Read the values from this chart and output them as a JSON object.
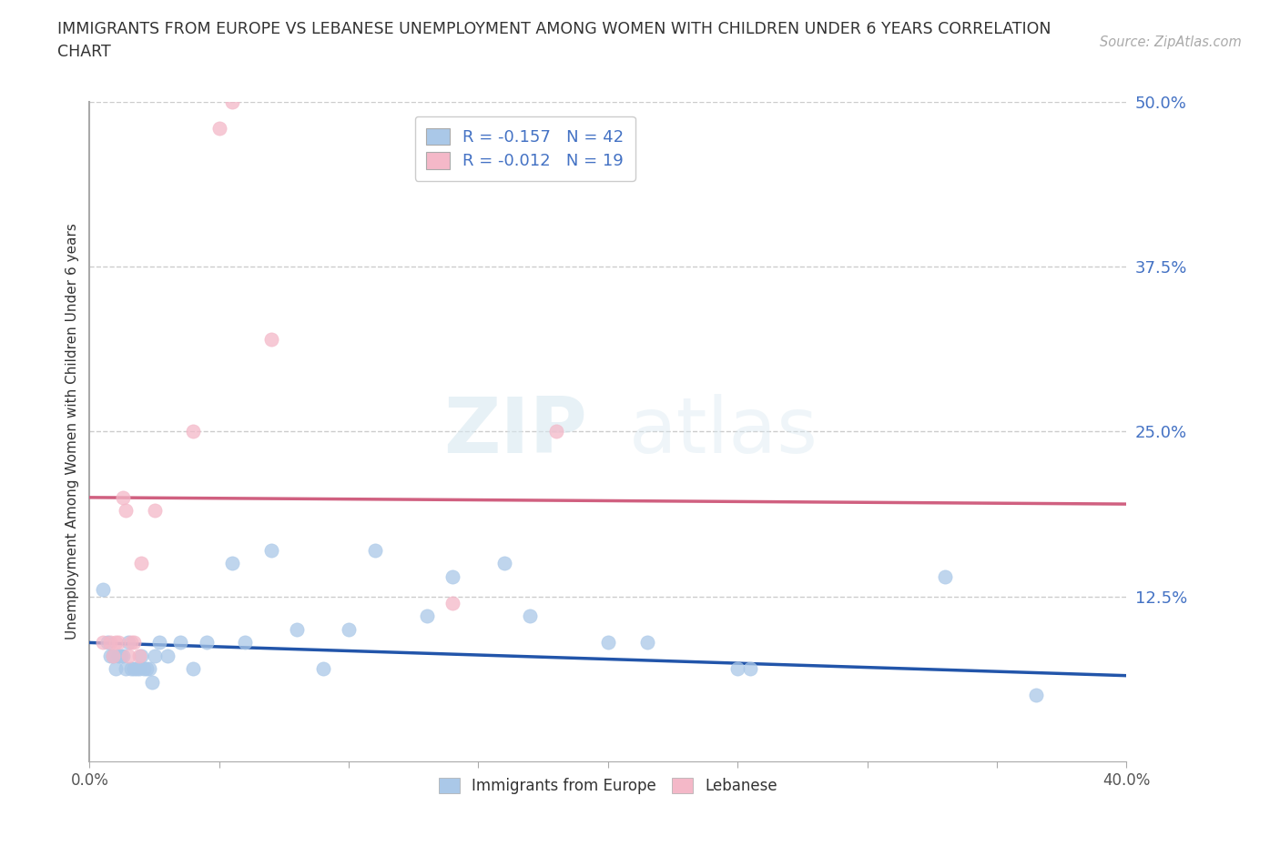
{
  "title": "IMMIGRANTS FROM EUROPE VS LEBANESE UNEMPLOYMENT AMONG WOMEN WITH CHILDREN UNDER 6 YEARS CORRELATION\nCHART",
  "source": "Source: ZipAtlas.com",
  "ylabel": "Unemployment Among Women with Children Under 6 years",
  "xlim": [
    0.0,
    0.4
  ],
  "ylim": [
    0.0,
    0.5
  ],
  "yticks": [
    0.125,
    0.25,
    0.375,
    0.5
  ],
  "ytick_labels": [
    "12.5%",
    "25.0%",
    "37.5%",
    "50.0%"
  ],
  "xticks": [
    0.0,
    0.05,
    0.1,
    0.15,
    0.2,
    0.25,
    0.3,
    0.35,
    0.4
  ],
  "xtick_labels": [
    "0.0%",
    "",
    "",
    "",
    "",
    "",
    "",
    "",
    "40.0%"
  ],
  "grid_color": "#cccccc",
  "background_color": "#ffffff",
  "blue_color": "#aac8e8",
  "pink_color": "#f4b8c8",
  "blue_line_color": "#2255aa",
  "pink_line_color": "#d06080",
  "legend1_text": "R = -0.157   N = 42",
  "legend2_text": "R = -0.012   N = 19",
  "legend_label1": "Immigrants from Europe",
  "legend_label2": "Lebanese",
  "watermark_zip": "ZIP",
  "watermark_atlas": "atlas",
  "blue_scatter_x": [
    0.005,
    0.007,
    0.008,
    0.009,
    0.01,
    0.011,
    0.012,
    0.013,
    0.014,
    0.015,
    0.016,
    0.017,
    0.018,
    0.019,
    0.02,
    0.021,
    0.022,
    0.023,
    0.024,
    0.025,
    0.027,
    0.03,
    0.035,
    0.04,
    0.045,
    0.055,
    0.06,
    0.07,
    0.08,
    0.09,
    0.1,
    0.11,
    0.13,
    0.14,
    0.16,
    0.17,
    0.2,
    0.215,
    0.25,
    0.255,
    0.33,
    0.365
  ],
  "blue_scatter_y": [
    0.13,
    0.09,
    0.08,
    0.08,
    0.07,
    0.08,
    0.08,
    0.08,
    0.07,
    0.09,
    0.07,
    0.07,
    0.07,
    0.07,
    0.08,
    0.07,
    0.07,
    0.07,
    0.06,
    0.08,
    0.09,
    0.08,
    0.09,
    0.07,
    0.09,
    0.15,
    0.09,
    0.16,
    0.1,
    0.07,
    0.1,
    0.16,
    0.11,
    0.14,
    0.15,
    0.11,
    0.09,
    0.09,
    0.07,
    0.07,
    0.14,
    0.05
  ],
  "pink_scatter_x": [
    0.005,
    0.008,
    0.009,
    0.01,
    0.011,
    0.013,
    0.014,
    0.015,
    0.016,
    0.017,
    0.019,
    0.02,
    0.025,
    0.04,
    0.05,
    0.055,
    0.07,
    0.14,
    0.18
  ],
  "pink_scatter_y": [
    0.09,
    0.09,
    0.08,
    0.09,
    0.09,
    0.2,
    0.19,
    0.08,
    0.09,
    0.09,
    0.08,
    0.15,
    0.19,
    0.25,
    0.48,
    0.5,
    0.32,
    0.12,
    0.25
  ],
  "blue_line_x0": 0.0,
  "blue_line_y0": 0.09,
  "blue_line_x1": 0.4,
  "blue_line_y1": 0.065,
  "pink_line_x0": 0.0,
  "pink_line_y0": 0.2,
  "pink_line_x1": 0.4,
  "pink_line_y1": 0.195
}
